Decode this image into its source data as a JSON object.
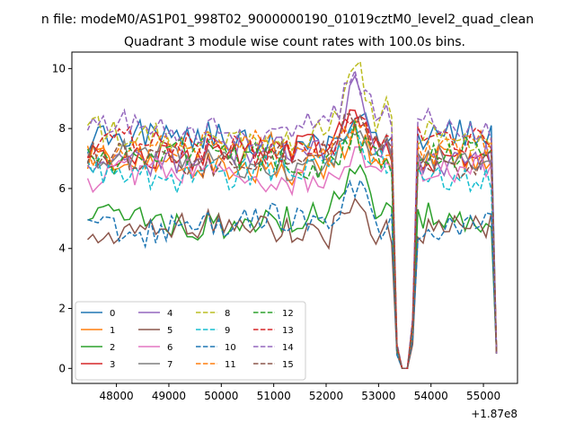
{
  "chart_data": {
    "type": "line",
    "suptitle": "n file: modeM0/AS1P01_998T02_9000000190_01019cztM0_level2_quad_clean",
    "title": "Quadrant 3 module wise count rates with 100.0s bins.",
    "xlabel": "",
    "ylabel": "",
    "x_offset_label": "+1.87e8",
    "xlim": [
      47150,
      55650
    ],
    "ylim": [
      -0.5,
      10.55
    ],
    "x_ticks": [
      48000,
      49000,
      50000,
      51000,
      52000,
      53000,
      54000,
      55000
    ],
    "x_tick_labels": [
      "48000",
      "49000",
      "50000",
      "51000",
      "52000",
      "53000",
      "54000",
      "55000"
    ],
    "y_ticks": [
      0,
      2,
      4,
      6,
      8,
      10
    ],
    "y_tick_labels": [
      "0",
      "2",
      "4",
      "6",
      "8",
      "10"
    ],
    "grid": false,
    "legend_position": "lower-left",
    "legend_columns": 4,
    "x_start": 47450,
    "bin": 100,
    "gaps": [
      [
        53380,
        53620
      ]
    ],
    "series": [
      {
        "name": "0",
        "color": "#1f77b4",
        "dash": "solid",
        "base": 7.6,
        "peak": 1.0
      },
      {
        "name": "1",
        "color": "#ff7f0e",
        "dash": "solid",
        "base": 6.8,
        "peak": 0.9
      },
      {
        "name": "2",
        "color": "#2ca02c",
        "dash": "solid",
        "base": 5.0,
        "peak": 1.6
      },
      {
        "name": "3",
        "color": "#d62728",
        "dash": "solid",
        "base": 7.2,
        "peak": 1.2
      },
      {
        "name": "4",
        "color": "#9467bd",
        "dash": "solid",
        "base": 7.1,
        "peak": 2.3
      },
      {
        "name": "5",
        "color": "#8c564b",
        "dash": "solid",
        "base": 4.6,
        "peak": 1.5
      },
      {
        "name": "6",
        "color": "#e377c2",
        "dash": "solid",
        "base": 6.4,
        "peak": 1.0
      },
      {
        "name": "7",
        "color": "#7f7f7f",
        "dash": "solid",
        "base": 6.9,
        "peak": 1.3
      },
      {
        "name": "8",
        "color": "#bcbd22",
        "dash": "dashed",
        "base": 7.7,
        "peak": 2.2
      },
      {
        "name": "9",
        "color": "#17becf",
        "dash": "dashed",
        "base": 6.6,
        "peak": 1.0
      },
      {
        "name": "10",
        "color": "#1f77b4",
        "dash": "dashed",
        "base": 4.8,
        "peak": 1.2
      },
      {
        "name": "11",
        "color": "#ff7f0e",
        "dash": "dashed",
        "base": 7.3,
        "peak": 1.1
      },
      {
        "name": "12",
        "color": "#2ca02c",
        "dash": "dashed",
        "base": 7.0,
        "peak": 1.0
      },
      {
        "name": "13",
        "color": "#d62728",
        "dash": "dashed",
        "base": 7.4,
        "peak": 1.1
      },
      {
        "name": "14",
        "color": "#9467bd",
        "dash": "dashed",
        "base": 8.1,
        "peak": 1.4
      },
      {
        "name": "15",
        "color": "#8c564b",
        "dash": "dashed",
        "base": 7.0,
        "peak": 1.2
      }
    ]
  }
}
